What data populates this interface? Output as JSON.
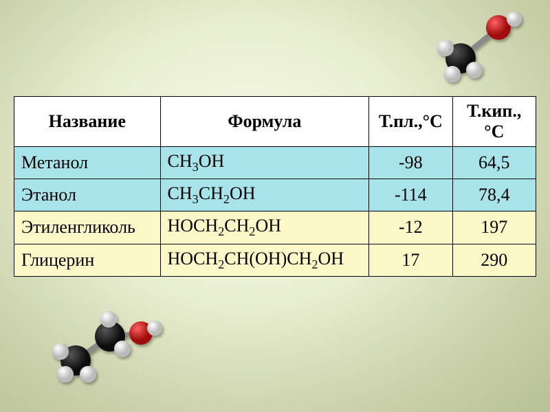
{
  "table": {
    "headers": {
      "name": "Название",
      "formula": "Формула",
      "tpl": "Т.пл.,°С",
      "tkip": "Т.кип.,°С"
    },
    "rows": [
      {
        "name": "Метанол",
        "formula_html": "CH<sub>3</sub>OH",
        "tpl": "-98",
        "tkip": "64,5",
        "row_color": "#a7e3e8"
      },
      {
        "name": "Этанол",
        "formula_html": "CH<sub>3</sub>CH<sub>2</sub>OH",
        "tpl": "-114",
        "tkip": "78,4",
        "row_color": "#a7e3e8"
      },
      {
        "name": "Этиленгликоль",
        "formula_html": "HOCH<sub>2</sub>CH<sub>2</sub>OH",
        "tpl": "-12",
        "tkip": "197",
        "row_color": "#fdf8c8"
      },
      {
        "name": "Глицерин",
        "formula_html": "HOCH<sub>2</sub>CH(OH)CH<sub>2</sub>OH",
        "tpl": "17",
        "tkip": "290",
        "row_color": "#fdf8c8"
      }
    ],
    "header_bg": "#ffffff",
    "border_color": "#000000",
    "font_family": "Times New Roman",
    "cell_fontsize": 26
  },
  "molecules": {
    "atom_colors": {
      "C": "#2a2a2a",
      "H": "#e8e8e8",
      "O": "#d42020"
    }
  },
  "background": {
    "gradient_center": "#f8fbe8",
    "gradient_mid": "#e8eed0",
    "gradient_outer": "#b8c095"
  }
}
